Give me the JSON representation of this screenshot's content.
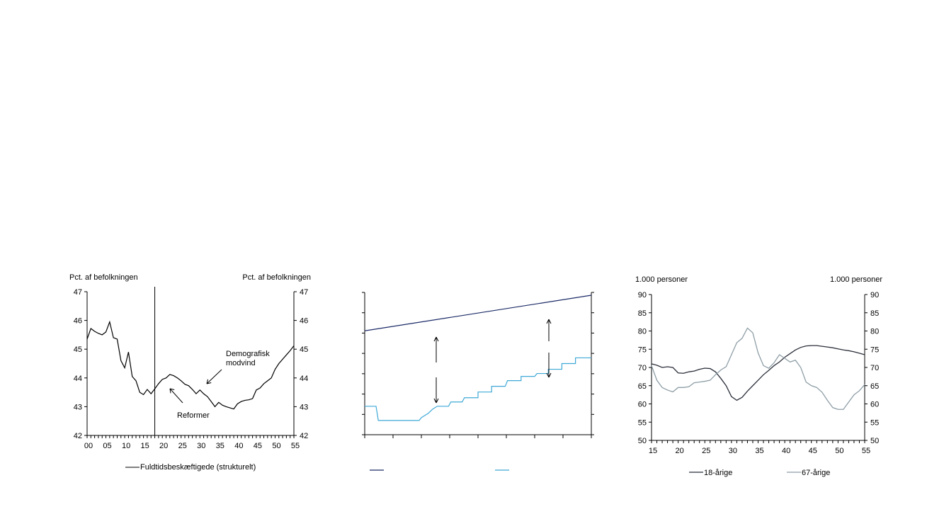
{
  "chart_data": [
    {
      "type": "line",
      "left_unit": "Pct. af befolkningen",
      "right_unit": "Pct. af befolkningen",
      "categories": [
        "00",
        "05",
        "10",
        "15",
        "20",
        "25",
        "30",
        "35",
        "40",
        "45",
        "50",
        "55"
      ],
      "ylim": [
        42,
        47
      ],
      "yticks": [
        "42",
        "43",
        "44",
        "45",
        "46",
        "47"
      ],
      "series": [
        {
          "name": "Fuldtidsbeskæftigede (strukturelt)",
          "color": "#000000",
          "x": [
            0,
            1,
            2,
            3,
            4,
            5,
            6,
            7,
            8,
            9,
            10,
            11,
            12,
            13,
            14,
            15,
            16,
            17,
            18,
            19,
            20,
            21,
            22,
            23,
            24,
            25,
            26,
            27,
            28,
            29,
            30,
            31,
            32,
            33,
            34,
            35,
            36,
            37,
            38,
            39,
            40,
            41,
            42,
            43,
            44,
            45,
            46,
            47,
            48,
            49,
            50,
            51,
            52,
            53,
            54,
            55
          ],
          "values": [
            45.35,
            45.72,
            45.62,
            45.55,
            45.5,
            45.6,
            45.95,
            45.4,
            45.35,
            44.6,
            44.35,
            44.9,
            44.05,
            43.9,
            43.5,
            43.42,
            43.6,
            43.45,
            43.62,
            43.8,
            43.95,
            44.0,
            44.12,
            44.08,
            44.0,
            43.9,
            43.78,
            43.73,
            43.6,
            43.45,
            43.58,
            43.45,
            43.35,
            43.18,
            43.0,
            43.15,
            43.05,
            43.0,
            42.96,
            42.92,
            43.1,
            43.18,
            43.22,
            43.24,
            43.28,
            43.58,
            43.65,
            43.8,
            43.9,
            44.0,
            44.3,
            44.5,
            44.65,
            44.8,
            44.95,
            45.12
          ]
        }
      ],
      "divider_at": 18,
      "annotations": [
        "Demografisk",
        "modvind",
        "Reformer"
      ]
    },
    {
      "type": "line",
      "series": [
        {
          "name": "",
          "color": "#1b2a66",
          "x": [
            0,
            1
          ],
          "values": [
            0.73,
            0.98
          ]
        },
        {
          "name": "",
          "color": "#3fa9d6",
          "steps": true,
          "x": [
            0,
            0.05,
            0.06,
            0.1,
            0.12,
            0.24,
            0.25,
            0.28,
            0.3,
            0.32,
            0.37,
            0.38,
            0.43,
            0.44,
            0.5,
            0.5,
            0.56,
            0.56,
            0.62,
            0.63,
            0.69,
            0.69,
            0.75,
            0.76,
            0.81,
            0.81,
            0.87,
            0.87,
            0.93,
            0.93,
            1.0
          ],
          "values": [
            0.2,
            0.2,
            0.1,
            0.1,
            0.1,
            0.1,
            0.12,
            0.15,
            0.18,
            0.2,
            0.2,
            0.23,
            0.23,
            0.26,
            0.26,
            0.3,
            0.3,
            0.34,
            0.34,
            0.38,
            0.38,
            0.41,
            0.41,
            0.43,
            0.43,
            0.46,
            0.46,
            0.5,
            0.5,
            0.54,
            0.54
          ]
        }
      ]
    },
    {
      "type": "line",
      "left_unit": "1.000 personer",
      "right_unit": "1.000 personer",
      "categories": [
        "15",
        "20",
        "25",
        "30",
        "35",
        "40",
        "45",
        "50",
        "55"
      ],
      "ylim": [
        50,
        90
      ],
      "yticks": [
        "50",
        "55",
        "60",
        "65",
        "70",
        "75",
        "80",
        "85",
        "90"
      ],
      "series": [
        {
          "name": "18-årige",
          "color": "#2b2f3a",
          "x": [
            15,
            16,
            17,
            18,
            19,
            20,
            21,
            22,
            23,
            24,
            25,
            26,
            27,
            28,
            29,
            30,
            31,
            32,
            33,
            34,
            35,
            36,
            37,
            38,
            39,
            40,
            41,
            42,
            43,
            44,
            45,
            46,
            47,
            48,
            49,
            50,
            51,
            52,
            53,
            54,
            55
          ],
          "values": [
            71,
            70.6,
            70,
            70.2,
            70,
            68.5,
            68.4,
            68.8,
            69,
            69.5,
            69.8,
            69.7,
            68.8,
            67,
            65,
            62,
            61,
            61.8,
            63.5,
            65,
            66.5,
            68,
            69.2,
            70.5,
            71.5,
            72.8,
            73.8,
            74.8,
            75.5,
            75.9,
            76,
            76,
            75.8,
            75.6,
            75.4,
            75.1,
            74.8,
            74.6,
            74.3,
            73.9,
            73.5
          ]
        },
        {
          "name": "67-årige",
          "color": "#8e9ea6",
          "x": [
            15,
            16,
            17,
            18,
            19,
            20,
            21,
            22,
            23,
            24,
            25,
            26,
            27,
            28,
            29,
            30,
            31,
            32,
            33,
            34,
            35,
            36,
            37,
            38,
            39,
            40,
            41,
            42,
            43,
            44,
            45,
            46,
            47,
            48,
            49,
            50,
            51,
            52,
            53,
            54,
            55
          ],
          "values": [
            70.5,
            66.5,
            64.5,
            63.8,
            63.3,
            64.5,
            64.5,
            64.7,
            65.8,
            66,
            66.2,
            66.5,
            68,
            69.3,
            70.2,
            73.5,
            76.8,
            78,
            80.8,
            79.5,
            74,
            70.5,
            69.8,
            71.3,
            73.5,
            72.5,
            71.5,
            72,
            70,
            66,
            65,
            64.5,
            63.2,
            61,
            59,
            58.5,
            58.5,
            60.5,
            62.5,
            63.6,
            65.3
          ]
        }
      ]
    }
  ]
}
